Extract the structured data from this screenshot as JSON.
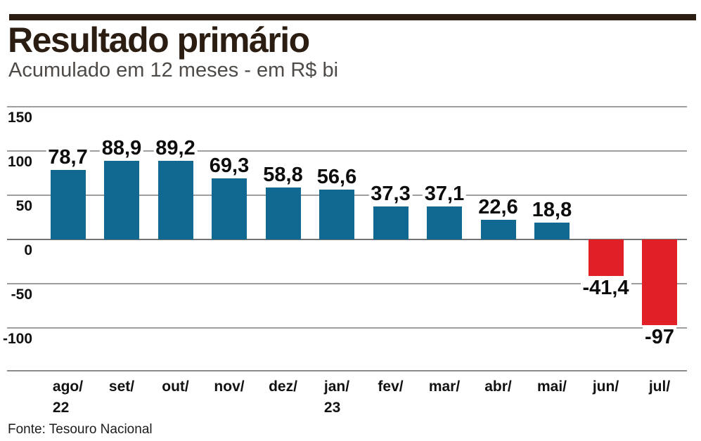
{
  "chart_data": {
    "type": "bar",
    "title": "Resultado primário",
    "subtitle": "Acumulado em 12 meses - em R$ bi",
    "source": "Fonte: Tesouro Nacional",
    "categories": [
      "ago/22",
      "set/",
      "out/",
      "nov/",
      "dez/",
      "jan/23",
      "fev/",
      "mar/",
      "abr/",
      "mai/",
      "jun/",
      "jul/"
    ],
    "category_lines": [
      [
        "ago/",
        "22"
      ],
      [
        "set/",
        ""
      ],
      [
        "out/",
        ""
      ],
      [
        "nov/",
        ""
      ],
      [
        "dez/",
        ""
      ],
      [
        "jan/",
        "23"
      ],
      [
        "fev/",
        ""
      ],
      [
        "mar/",
        ""
      ],
      [
        "abr/",
        ""
      ],
      [
        "mai/",
        ""
      ],
      [
        "jun/",
        ""
      ],
      [
        "jul/",
        ""
      ]
    ],
    "values": [
      78.7,
      88.9,
      89.2,
      69.3,
      58.8,
      56.6,
      37.3,
      37.1,
      22.6,
      18.8,
      -41.4,
      -97
    ],
    "value_labels": [
      "78,7",
      "88,9",
      "89,2",
      "69,3",
      "58,8",
      "56,6",
      "37,3",
      "37,1",
      "22,6",
      "18,8",
      "-41,4",
      "-97"
    ],
    "yticks": [
      {
        "value": 150,
        "label": "150"
      },
      {
        "value": 100,
        "label": "100"
      },
      {
        "value": 50,
        "label": "50"
      },
      {
        "value": 0,
        "label": "0"
      },
      {
        "value": -50,
        "label": "-50"
      },
      {
        "value": -100,
        "label": "-100"
      }
    ],
    "ylim": [
      -120,
      160
    ],
    "grid": true,
    "legend": "none",
    "positive_color": "#116891",
    "negative_color": "#e02026",
    "colors": {
      "title_and_rule": "#2b1d11",
      "subtitle": "#4e4a47",
      "gridline": "#9e9e9e",
      "zero_line": "#737373"
    }
  }
}
